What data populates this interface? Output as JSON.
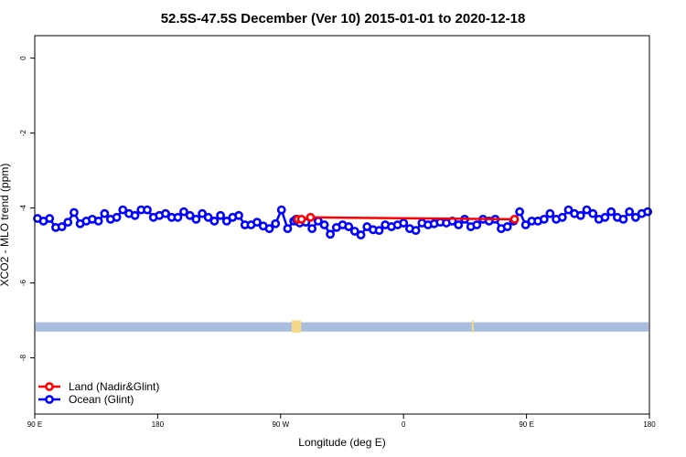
{
  "chart_data": {
    "type": "line",
    "title": "52.5S-47.5S December (Ver 10)   2015-01-01 to 2020-12-18",
    "xlabel": "Longitude (deg E)",
    "ylabel": "XCO2 - MLO trend (ppm)",
    "xlim": [
      90,
      450
    ],
    "ylim": [
      -9.5,
      0.6
    ],
    "x_ticks": [
      {
        "value": 90,
        "label": "90 E"
      },
      {
        "value": 162,
        "label": "180"
      },
      {
        "value": 234,
        "label": "90 W"
      },
      {
        "value": 306,
        "label": "0"
      },
      {
        "value": 378,
        "label": "90 E"
      },
      {
        "value": 450,
        "label": "180"
      }
    ],
    "y_ticks": [
      {
        "value": 0,
        "label": "0"
      },
      {
        "value": -2,
        "label": "-2"
      },
      {
        "value": -4,
        "label": "-4"
      },
      {
        "value": -6,
        "label": "-6"
      },
      {
        "value": -8,
        "label": "-8"
      }
    ],
    "grid": false,
    "legend_position": "bottom-left",
    "series": [
      {
        "name": "Land (Nadir&Glint)",
        "color": "#ff0000",
        "x": [
          244.1,
          246.2,
          251.5,
          371.0
        ],
        "y": [
          -4.3,
          -4.3,
          -4.25,
          -4.3
        ]
      },
      {
        "name": "Ocean (Glint)",
        "color": "#0000ff",
        "x": [
          91.6,
          95.1,
          98.7,
          102.3,
          105.9,
          109.4,
          113.0,
          116.6,
          120.2,
          123.7,
          127.3,
          130.9,
          134.4,
          138.0,
          141.6,
          145.2,
          148.7,
          152.3,
          155.9,
          159.5,
          163.0,
          166.6,
          170.2,
          173.8,
          177.3,
          180.9,
          184.5,
          188.1,
          191.6,
          195.2,
          198.8,
          202.4,
          205.9,
          209.5,
          213.1,
          216.7,
          220.2,
          223.8,
          227.4,
          231.0,
          234.5,
          238.1,
          241.7,
          243.1,
          245.2,
          248.8,
          252.4,
          256.0,
          259.6,
          263.1,
          266.7,
          270.3,
          273.9,
          277.4,
          281.0,
          284.6,
          288.2,
          291.7,
          295.3,
          298.9,
          302.5,
          306.0,
          309.6,
          313.2,
          316.8,
          320.3,
          323.9,
          327.5,
          331.1,
          334.6,
          338.2,
          341.8,
          345.4,
          348.9,
          352.5,
          356.1,
          359.7,
          363.2,
          366.8,
          370.4,
          374.0,
          377.5,
          381.1,
          384.7,
          388.3,
          391.8,
          395.4,
          399.0,
          402.6,
          406.1,
          409.7,
          413.3,
          416.9,
          420.4,
          424.0,
          427.6,
          431.2,
          434.7,
          438.3,
          441.9,
          445.5,
          449.0
        ],
        "y": [
          -4.28,
          -4.35,
          -4.28,
          -4.52,
          -4.5,
          -4.38,
          -4.12,
          -4.42,
          -4.35,
          -4.3,
          -4.35,
          -4.15,
          -4.3,
          -4.25,
          -4.05,
          -4.15,
          -4.2,
          -4.05,
          -4.05,
          -4.25,
          -4.2,
          -4.15,
          -4.25,
          -4.25,
          -4.1,
          -4.2,
          -4.3,
          -4.15,
          -4.25,
          -4.35,
          -4.2,
          -4.35,
          -4.25,
          -4.2,
          -4.45,
          -4.45,
          -4.38,
          -4.48,
          -4.55,
          -4.42,
          -4.05,
          -4.55,
          -4.35,
          -4.3,
          -4.4,
          -4.38,
          -4.55,
          -4.35,
          -4.45,
          -4.7,
          -4.52,
          -4.45,
          -4.5,
          -4.62,
          -4.72,
          -4.5,
          -4.58,
          -4.6,
          -4.45,
          -4.5,
          -4.45,
          -4.4,
          -4.55,
          -4.6,
          -4.4,
          -4.45,
          -4.42,
          -4.38,
          -4.4,
          -4.35,
          -4.45,
          -4.3,
          -4.5,
          -4.45,
          -4.3,
          -4.35,
          -4.3,
          -4.55,
          -4.5,
          -4.35,
          -4.1,
          -4.45,
          -4.35,
          -4.35,
          -4.3,
          -4.15,
          -4.3,
          -4.25,
          -4.05,
          -4.15,
          -4.2,
          -4.05,
          -4.15,
          -4.3,
          -4.25,
          -4.1,
          -4.25,
          -4.3,
          -4.1,
          -4.25,
          -4.15,
          -4.1
        ]
      }
    ],
    "map_strip": {
      "y_top": -7.05,
      "y_bottom": -7.3,
      "color": "#a8bedc",
      "land_color": "#f5d98a",
      "land_segments": [
        {
          "x0": 240.5,
          "x1": 246.0
        },
        {
          "x0": 346.0,
          "x1": 347.0
        }
      ]
    }
  }
}
